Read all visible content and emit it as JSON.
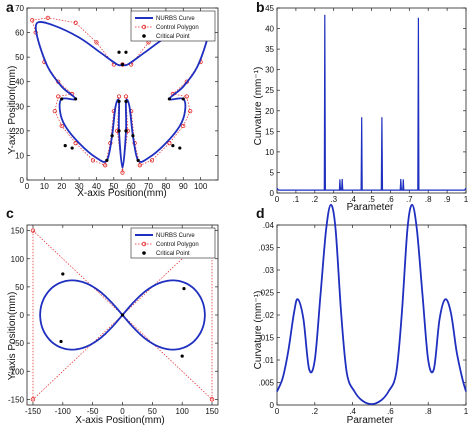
{
  "chart_data": [
    {
      "panel": "a",
      "type": "line",
      "xlabel": "X-axis Position(mm)",
      "ylabel": "Y-axis Position(mm)",
      "xlim": [
        0,
        110
      ],
      "ylim": [
        0,
        70
      ],
      "xticks": [
        0,
        10,
        20,
        30,
        40,
        50,
        60,
        70,
        80,
        90,
        100
      ],
      "yticks": [
        0,
        10,
        20,
        30,
        40,
        50,
        60,
        70
      ],
      "legend": [
        "NURBS Curve",
        "Control Polygon",
        "Critical Point"
      ],
      "legend_position": "top-right",
      "colors": {
        "curve": "#1f2fbf",
        "control": "#e32222",
        "critical": "#000000"
      },
      "series": [
        {
          "name": "NURBS Curve",
          "points": [
            [
              55,
              47
            ],
            [
              52,
              47
            ],
            [
              42,
              52
            ],
            [
              30,
              58
            ],
            [
              15,
              63
            ],
            [
              6,
              64
            ],
            [
              6,
              58
            ],
            [
              12,
              46
            ],
            [
              20,
              38
            ],
            [
              28,
              33
            ],
            [
              20,
              33
            ],
            [
              19,
              28
            ],
            [
              22,
              22
            ],
            [
              30,
              15
            ],
            [
              40,
              9
            ],
            [
              46,
              8
            ],
            [
              49,
              18
            ],
            [
              51,
              30
            ],
            [
              53,
              32
            ],
            [
              53,
              20
            ],
            [
              55,
              5
            ],
            [
              57,
              20
            ],
            [
              57,
              32
            ],
            [
              59,
              30
            ],
            [
              61,
              18
            ],
            [
              64,
              8
            ],
            [
              70,
              9
            ],
            [
              80,
              15
            ],
            [
              88,
              22
            ],
            [
              91,
              28
            ],
            [
              90,
              33
            ],
            [
              82,
              33
            ],
            [
              90,
              38
            ],
            [
              98,
              46
            ],
            [
              104,
              58
            ],
            [
              104,
              64
            ],
            [
              95,
              63
            ],
            [
              80,
              58
            ],
            [
              68,
              52
            ],
            [
              58,
              47
            ],
            [
              55,
              47
            ]
          ]
        },
        {
          "name": "Control Polygon",
          "points": [
            [
              55,
              47
            ],
            [
              50,
              47
            ],
            [
              40,
              56
            ],
            [
              28,
              64
            ],
            [
              12,
              66
            ],
            [
              3,
              65
            ],
            [
              5,
              60
            ],
            [
              10,
              48
            ],
            [
              18,
              40
            ],
            [
              26,
              35
            ],
            [
              18,
              34
            ],
            [
              16,
              28
            ],
            [
              20,
              22
            ],
            [
              28,
              15
            ],
            [
              38,
              8
            ],
            [
              45,
              6
            ],
            [
              48,
              15
            ],
            [
              50,
              28
            ],
            [
              53,
              34
            ],
            [
              52,
              20
            ],
            [
              55,
              3
            ],
            [
              58,
              20
            ],
            [
              57,
              34
            ],
            [
              60,
              28
            ],
            [
              62,
              15
            ],
            [
              65,
              6
            ],
            [
              72,
              8
            ],
            [
              82,
              15
            ],
            [
              90,
              22
            ],
            [
              94,
              28
            ],
            [
              92,
              34
            ],
            [
              84,
              35
            ],
            [
              92,
              40
            ],
            [
              100,
              48
            ],
            [
              105,
              60
            ],
            [
              107,
              65
            ],
            [
              98,
              66
            ],
            [
              82,
              64
            ],
            [
              70,
              56
            ],
            [
              60,
              47
            ],
            [
              55,
              47
            ]
          ]
        },
        {
          "name": "Critical Point",
          "points": [
            [
              55,
              47
            ],
            [
              53,
              52
            ],
            [
              57,
              52
            ],
            [
              20,
              33
            ],
            [
              28,
              33
            ],
            [
              82,
              33
            ],
            [
              90,
              33
            ],
            [
              49,
              18
            ],
            [
              61,
              18
            ],
            [
              53,
              32
            ],
            [
              57,
              32
            ],
            [
              53,
              20
            ],
            [
              57,
              20
            ],
            [
              22,
              14
            ],
            [
              26,
              13
            ],
            [
              84,
              14
            ],
            [
              88,
              13
            ],
            [
              46,
              8
            ],
            [
              64,
              8
            ]
          ]
        }
      ]
    },
    {
      "panel": "b",
      "type": "line",
      "xlabel": "Parameter",
      "ylabel": "Curvature (mm⁻¹)",
      "xlim": [
        0,
        1
      ],
      "ylim": [
        0,
        45
      ],
      "xticks": [
        0,
        0.1,
        0.2,
        0.3,
        0.4,
        0.5,
        0.6,
        0.7,
        0.8,
        0.9,
        1
      ],
      "yticks": [
        0,
        5,
        10,
        15,
        20,
        25,
        30,
        35,
        40,
        45
      ],
      "colors": {
        "curve": "#1f2fbf"
      },
      "spikes": [
        [
          0.253,
          43.2
        ],
        [
          0.333,
          3.2
        ],
        [
          0.345,
          3.3
        ],
        [
          0.448,
          18.3
        ],
        [
          0.555,
          18.3
        ],
        [
          0.655,
          3.3
        ],
        [
          0.668,
          3.2
        ],
        [
          0.748,
          42.5
        ]
      ],
      "baseline": 0.7
    },
    {
      "panel": "c",
      "type": "line",
      "xlabel": "X-axis Position(mm)",
      "ylabel": "Y-axis Position(mm)",
      "xlim": [
        -160,
        160
      ],
      "ylim": [
        -160,
        160
      ],
      "xticks": [
        -150,
        -100,
        -50,
        0,
        50,
        100,
        150
      ],
      "yticks": [
        -150,
        -100,
        -50,
        0,
        50,
        100,
        150
      ],
      "legend": [
        "NURBS Curve",
        "Control Polygon",
        "Critical Point"
      ],
      "legend_position": "top-right",
      "colors": {
        "curve": "#1f2fbf",
        "control": "#e32222",
        "critical": "#000000"
      },
      "control_points": [
        [
          -150,
          150
        ],
        [
          150,
          -150
        ],
        [
          150,
          150
        ],
        [
          -150,
          -150
        ],
        [
          -150,
          150
        ]
      ],
      "critical_points": [
        [
          -100,
          73
        ],
        [
          100,
          -73
        ],
        [
          103,
          47
        ],
        [
          -103,
          -47
        ],
        [
          0,
          0
        ]
      ]
    },
    {
      "panel": "d",
      "type": "line",
      "xlabel": "Parameter",
      "ylabel": "Curvature (mm⁻¹)",
      "xlim": [
        0,
        1
      ],
      "ylim": [
        0,
        0.04
      ],
      "xticks": [
        0,
        0.2,
        0.4,
        0.6,
        0.8,
        1
      ],
      "yticks": [
        0,
        0.005,
        0.01,
        0.015,
        0.02,
        0.025,
        0.03,
        0.035,
        0.04
      ],
      "colors": {
        "curve": "#1f2fbf"
      },
      "x": [
        0,
        0.03,
        0.06,
        0.09,
        0.11,
        0.14,
        0.17,
        0.2,
        0.23,
        0.26,
        0.285,
        0.31,
        0.34,
        0.37,
        0.41,
        0.45,
        0.5,
        0.55,
        0.59,
        0.63,
        0.66,
        0.69,
        0.715,
        0.74,
        0.77,
        0.8,
        0.83,
        0.86,
        0.89,
        0.92,
        0.95,
        0.98,
        1
      ],
      "y": [
        0.003,
        0.006,
        0.012,
        0.0205,
        0.0235,
        0.019,
        0.008,
        0.01,
        0.0245,
        0.039,
        0.0445,
        0.039,
        0.02,
        0.007,
        0.003,
        0.001,
        0.0002,
        0.001,
        0.003,
        0.007,
        0.02,
        0.039,
        0.0445,
        0.039,
        0.0245,
        0.01,
        0.008,
        0.019,
        0.0235,
        0.0205,
        0.012,
        0.006,
        0.003
      ]
    }
  ]
}
